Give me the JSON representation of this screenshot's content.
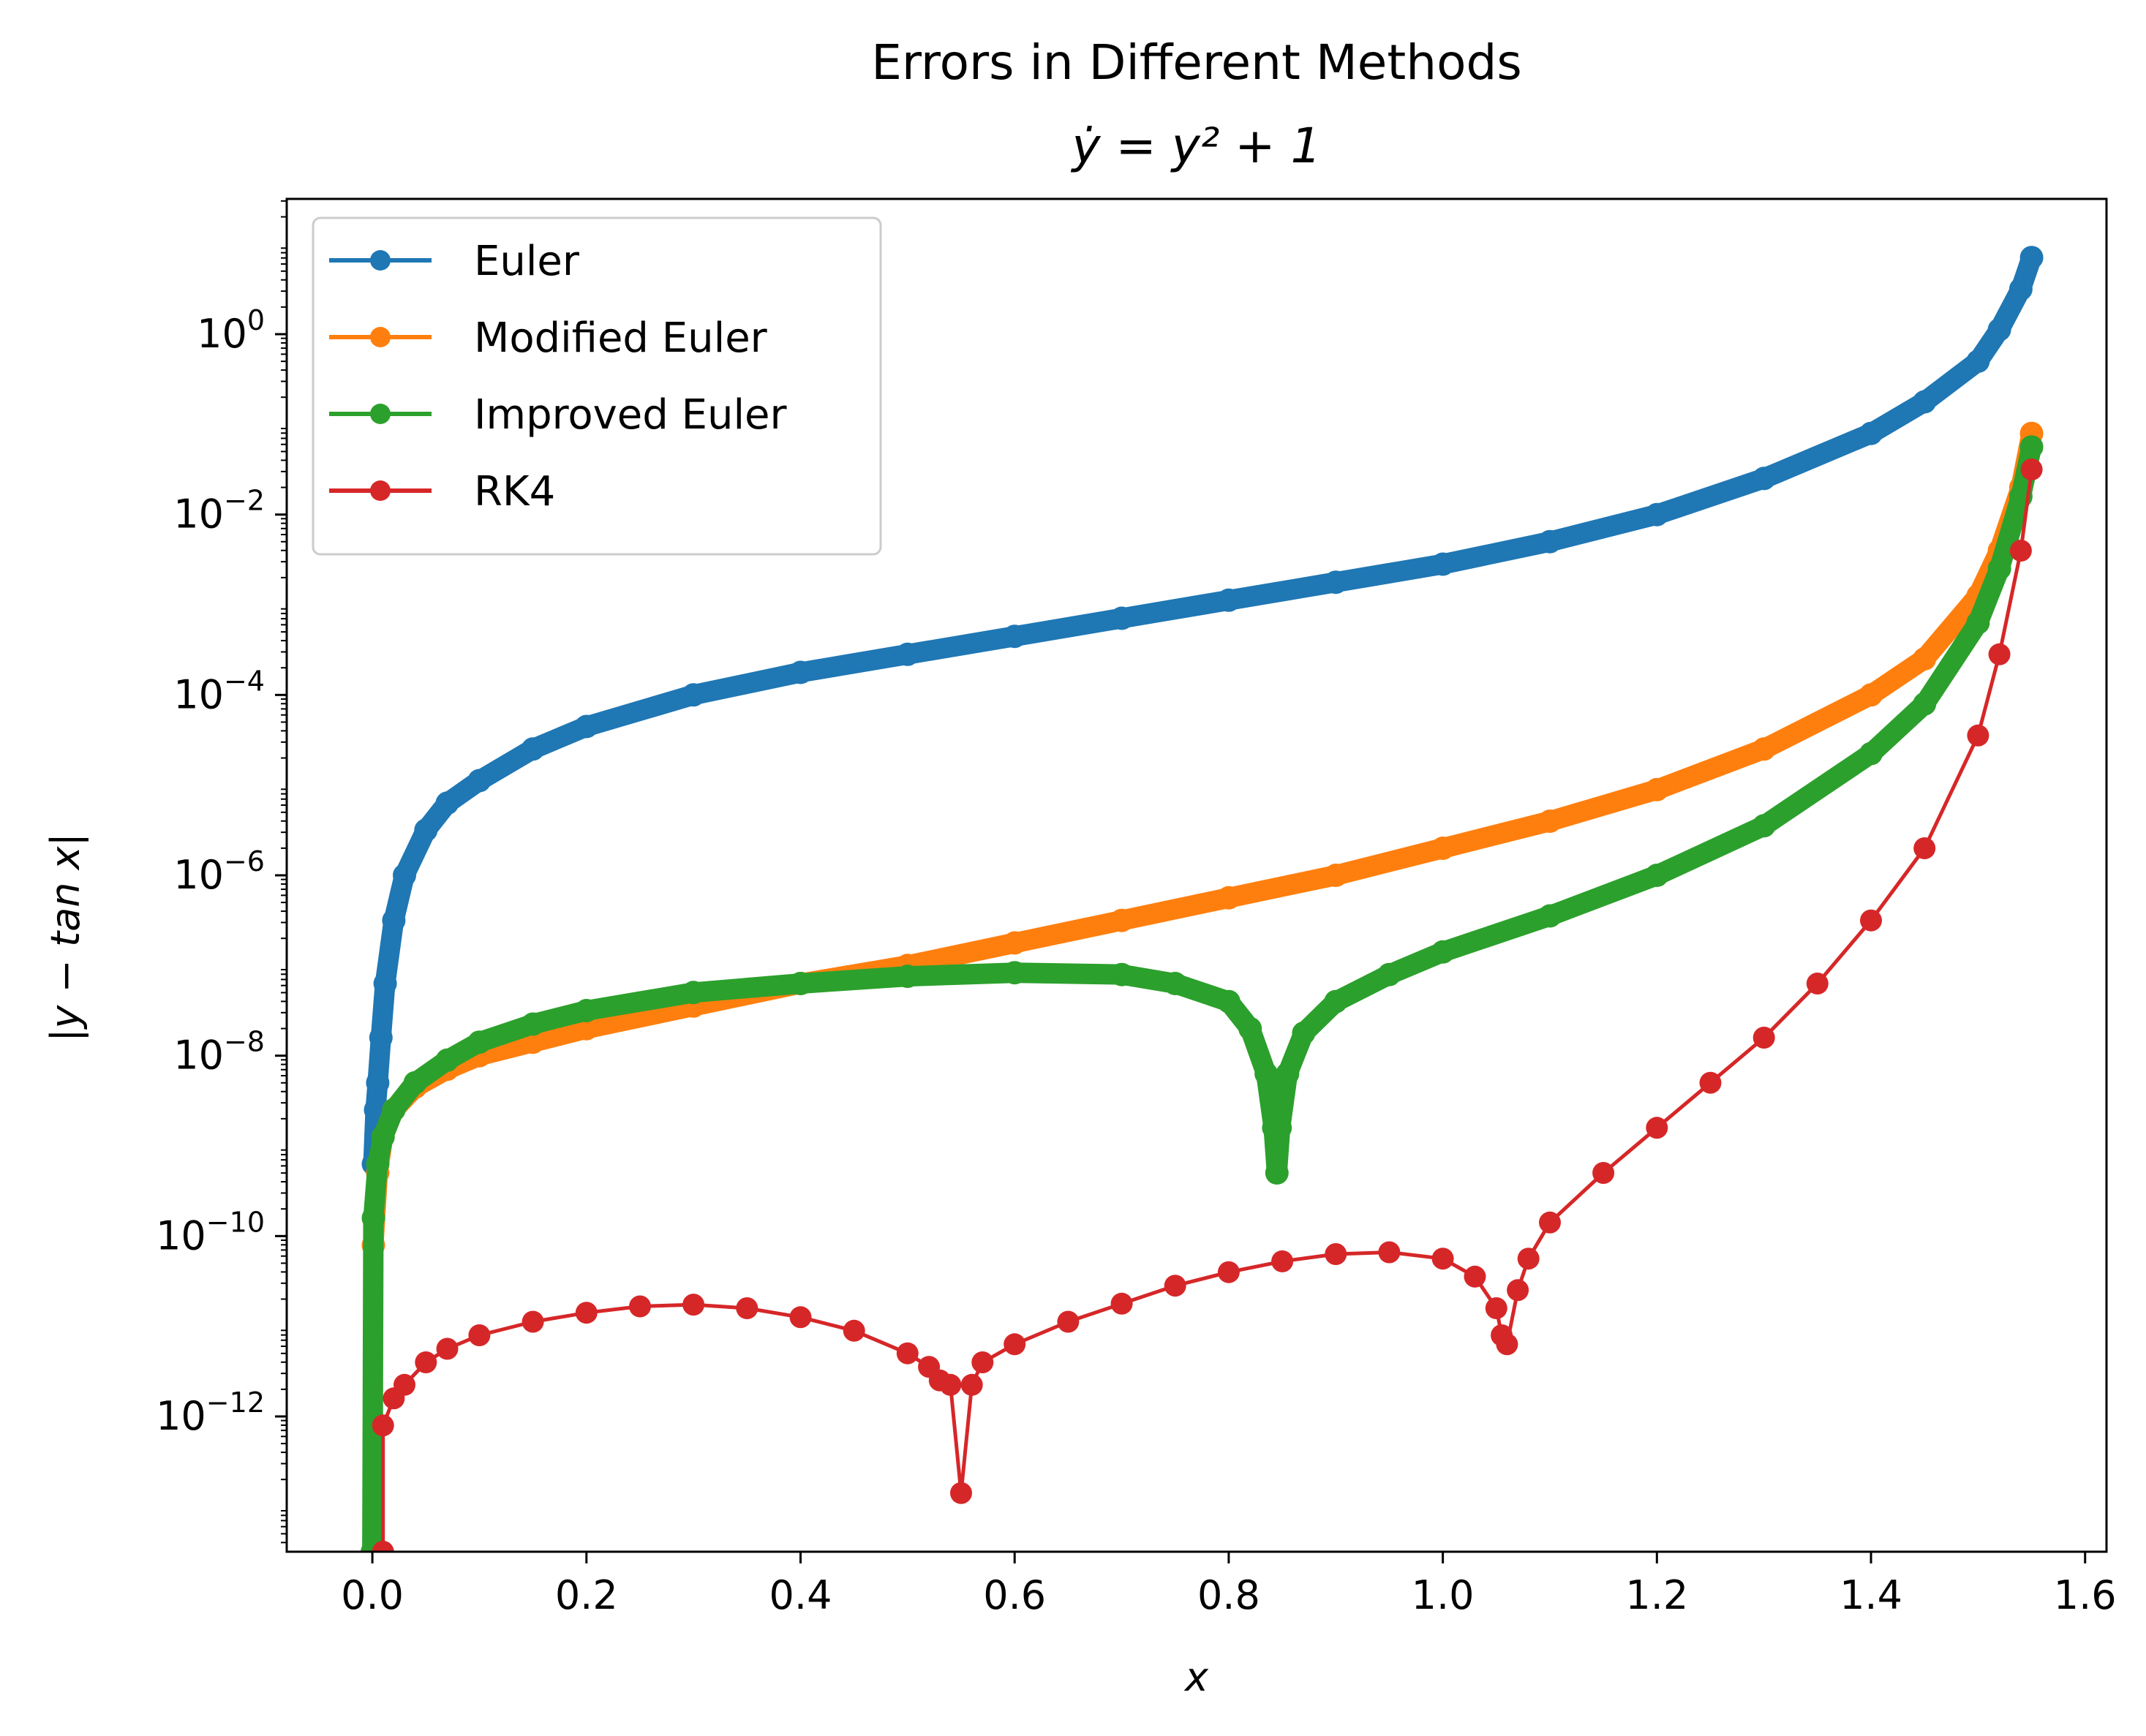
{
  "chart_data": {
    "type": "line",
    "title": "Errors in Different Methods",
    "subtitle": "ẏ = y² + 1",
    "xlabel": "x",
    "ylabel": "|y − tan x|",
    "xlim": [
      -0.08,
      1.62
    ],
    "ylim_log10": [
      -13.5,
      1.5
    ],
    "y_scale": "log",
    "grid": false,
    "legend_position": "top-left",
    "x_ticks": [
      0.0,
      0.2,
      0.4,
      0.6,
      0.8,
      1.0,
      1.2,
      1.4,
      1.6
    ],
    "x_tick_labels": [
      "0.0",
      "0.2",
      "0.4",
      "0.6",
      "0.8",
      "1.0",
      "1.2",
      "1.4",
      "1.6"
    ],
    "y_ticks_log10": [
      0,
      -2,
      -4,
      -6,
      -8,
      -10,
      -12
    ],
    "y_tick_labels": [
      {
        "base": "10",
        "exp": "0"
      },
      {
        "base": "10",
        "exp": "−2"
      },
      {
        "base": "10",
        "exp": "−4"
      },
      {
        "base": "10",
        "exp": "−6"
      },
      {
        "base": "10",
        "exp": "−8"
      },
      {
        "base": "10",
        "exp": "−10"
      },
      {
        "base": "10",
        "exp": "−12"
      }
    ],
    "series": [
      {
        "name": "Euler",
        "color": "#1f77b4",
        "dense": true,
        "x": [
          0.001,
          0.003,
          0.005,
          0.008,
          0.012,
          0.02,
          0.03,
          0.05,
          0.07,
          0.1,
          0.15,
          0.2,
          0.3,
          0.4,
          0.5,
          0.6,
          0.7,
          0.8,
          0.9,
          1.0,
          1.1,
          1.2,
          1.3,
          1.4,
          1.45,
          1.5,
          1.52,
          1.54,
          1.55
        ],
        "y_log10": [
          -9.2,
          -8.6,
          -8.3,
          -7.8,
          -7.2,
          -6.5,
          -6.0,
          -5.5,
          -5.2,
          -4.95,
          -4.6,
          -4.35,
          -4.0,
          -3.75,
          -3.55,
          -3.35,
          -3.15,
          -2.95,
          -2.75,
          -2.55,
          -2.3,
          -2.0,
          -1.6,
          -1.1,
          -0.75,
          -0.3,
          0.05,
          0.5,
          0.85
        ]
      },
      {
        "name": "Modified Euler",
        "color": "#ff7f0e",
        "dense": true,
        "x": [
          0.001,
          0.005,
          0.01,
          0.02,
          0.04,
          0.07,
          0.1,
          0.15,
          0.2,
          0.3,
          0.4,
          0.5,
          0.6,
          0.7,
          0.8,
          0.9,
          1.0,
          1.1,
          1.2,
          1.3,
          1.4,
          1.45,
          1.5,
          1.52,
          1.54,
          1.55
        ],
        "y_log10": [
          -10.1,
          -9.3,
          -8.9,
          -8.6,
          -8.35,
          -8.15,
          -8.0,
          -7.85,
          -7.7,
          -7.45,
          -7.2,
          -7.0,
          -6.75,
          -6.5,
          -6.25,
          -6.0,
          -5.7,
          -5.4,
          -5.05,
          -4.6,
          -4.0,
          -3.6,
          -2.9,
          -2.4,
          -1.7,
          -1.1
        ]
      },
      {
        "name": "Improved Euler",
        "color": "#2ca02c",
        "dense": true,
        "x": [
          0.0,
          0.001,
          0.005,
          0.01,
          0.02,
          0.04,
          0.07,
          0.1,
          0.15,
          0.2,
          0.3,
          0.4,
          0.5,
          0.6,
          0.7,
          0.75,
          0.8,
          0.82,
          0.835,
          0.842,
          0.845,
          0.848,
          0.855,
          0.87,
          0.9,
          0.95,
          1.0,
          1.1,
          1.2,
          1.3,
          1.4,
          1.45,
          1.5,
          1.52,
          1.54,
          1.55
        ],
        "y_log10": [
          -13.5,
          -9.8,
          -9.2,
          -8.9,
          -8.6,
          -8.3,
          -8.05,
          -7.85,
          -7.65,
          -7.5,
          -7.3,
          -7.2,
          -7.12,
          -7.08,
          -7.1,
          -7.2,
          -7.4,
          -7.7,
          -8.2,
          -8.8,
          -9.3,
          -8.8,
          -8.2,
          -7.75,
          -7.4,
          -7.1,
          -6.85,
          -6.45,
          -6.0,
          -5.45,
          -4.65,
          -4.1,
          -3.2,
          -2.6,
          -1.8,
          -1.25
        ]
      },
      {
        "name": "RK4",
        "color": "#d62728",
        "dense": false,
        "x": [
          0.01,
          0.01,
          0.02,
          0.03,
          0.05,
          0.07,
          0.1,
          0.15,
          0.2,
          0.25,
          0.3,
          0.35,
          0.4,
          0.45,
          0.5,
          0.52,
          0.53,
          0.54,
          0.55,
          0.56,
          0.57,
          0.6,
          0.65,
          0.7,
          0.75,
          0.8,
          0.85,
          0.9,
          0.95,
          1.0,
          1.03,
          1.05,
          1.055,
          1.06,
          1.07,
          1.08,
          1.1,
          1.15,
          1.2,
          1.25,
          1.3,
          1.35,
          1.4,
          1.45,
          1.5,
          1.52,
          1.54,
          1.55
        ],
        "y_log10": [
          -13.5,
          -12.1,
          -11.8,
          -11.65,
          -11.4,
          -11.25,
          -11.1,
          -10.95,
          -10.85,
          -10.78,
          -10.76,
          -10.8,
          -10.9,
          -11.05,
          -11.3,
          -11.45,
          -11.6,
          -11.65,
          -12.85,
          -11.65,
          -11.4,
          -11.2,
          -10.95,
          -10.75,
          -10.55,
          -10.4,
          -10.28,
          -10.2,
          -10.18,
          -10.25,
          -10.45,
          -10.8,
          -11.1,
          -11.2,
          -10.6,
          -10.25,
          -9.85,
          -9.3,
          -8.8,
          -8.3,
          -7.8,
          -7.2,
          -6.5,
          -5.7,
          -4.45,
          -3.55,
          -2.4,
          -1.5
        ]
      }
    ]
  }
}
